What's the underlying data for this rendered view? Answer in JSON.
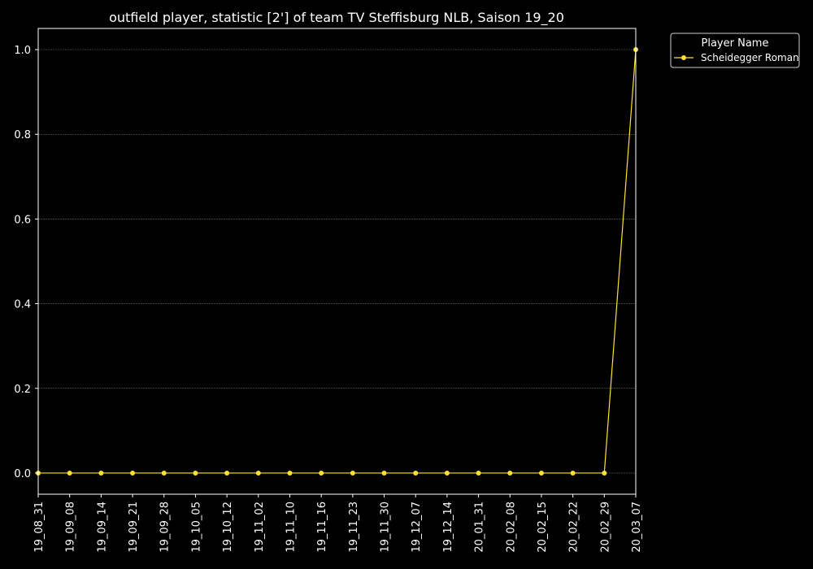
{
  "chart_data": {
    "type": "line",
    "title": "outfield player, statistic [2'] of team TV Steffisburg NLB, Saison 19_20",
    "xlabel": "",
    "ylabel": "",
    "categories": [
      "19_08_31",
      "19_09_08",
      "19_09_14",
      "19_09_21",
      "19_09_28",
      "19_10_05",
      "19_10_12",
      "19_11_02",
      "19_11_10",
      "19_11_16",
      "19_11_23",
      "19_11_30",
      "19_12_07",
      "19_12_14",
      "20_01_31",
      "20_02_08",
      "20_02_15",
      "20_02_22",
      "20_02_29",
      "20_03_07"
    ],
    "ylim": [
      -0.05,
      1.05
    ],
    "yticks": [
      0.0,
      0.2,
      0.4,
      0.6,
      0.8,
      1.0
    ],
    "ytick_labels": [
      "0.0",
      "0.2",
      "0.4",
      "0.6",
      "0.8",
      "1.0"
    ],
    "grid": true,
    "legend": {
      "title": "Player Name",
      "placement": "top-right outside"
    },
    "series": [
      {
        "name": "Scheidegger Roman",
        "color": "#ffe135",
        "values": [
          0,
          0,
          0,
          0,
          0,
          0,
          0,
          0,
          0,
          0,
          0,
          0,
          0,
          0,
          0,
          0,
          0,
          0,
          0,
          1
        ]
      }
    ]
  },
  "colors": {
    "background": "#000000",
    "axes": "#ffffff",
    "grid": "#7f7f7f",
    "text": "#ffffff"
  }
}
